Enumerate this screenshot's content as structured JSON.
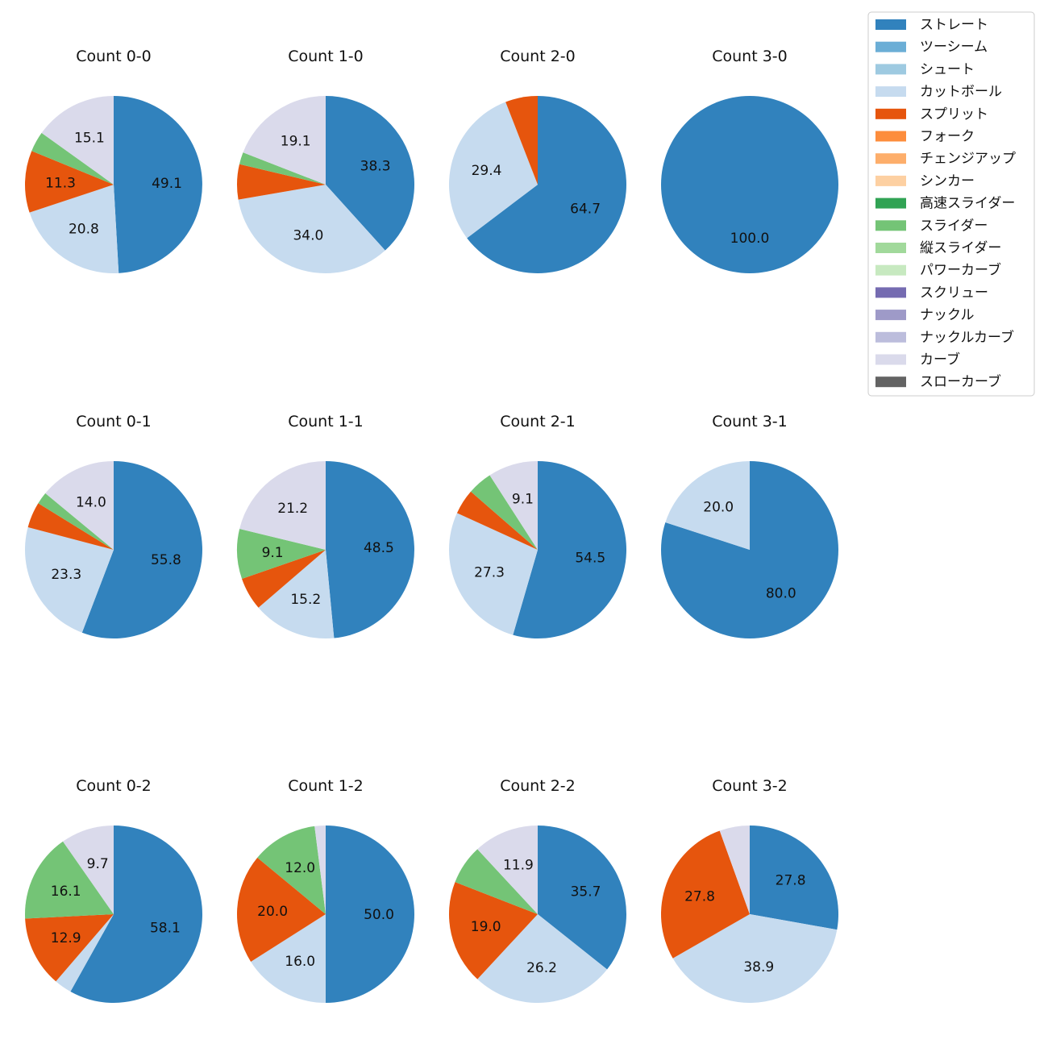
{
  "chart_data": {
    "type": "pie",
    "unit": "percent",
    "legend": {
      "placement": "top-right",
      "entries": [
        {
          "name": "ストレート",
          "color": "#3182bd"
        },
        {
          "name": "ツーシーム",
          "color": "#6baed6"
        },
        {
          "name": "シュート",
          "color": "#9ecae1"
        },
        {
          "name": "カットボール",
          "color": "#c6dbef"
        },
        {
          "name": "スプリット",
          "color": "#e6550d"
        },
        {
          "name": "フォーク",
          "color": "#fd8d3c"
        },
        {
          "name": "チェンジアップ",
          "color": "#fdae6b"
        },
        {
          "name": "シンカー",
          "color": "#fdd0a2"
        },
        {
          "name": "高速スライダー",
          "color": "#31a354"
        },
        {
          "name": "スライダー",
          "color": "#74c476"
        },
        {
          "name": "縦スライダー",
          "color": "#a1d99b"
        },
        {
          "name": "パワーカーブ",
          "color": "#c7e9c0"
        },
        {
          "name": "スクリュー",
          "color": "#756bb1"
        },
        {
          "name": "ナックル",
          "color": "#9e9ac8"
        },
        {
          "name": "ナックルカーブ",
          "color": "#bcbddc"
        },
        {
          "name": "カーブ",
          "color": "#dadaeb"
        },
        {
          "name": "スローカーブ",
          "color": "#636363"
        }
      ]
    },
    "charts": [
      {
        "title": "Count 0-0",
        "slices": [
          {
            "pitch": "ストレート",
            "value": 49.1,
            "label": "49.1"
          },
          {
            "pitch": "カットボール",
            "value": 20.8,
            "label": "20.8"
          },
          {
            "pitch": "スプリット",
            "value": 11.3,
            "label": "11.3"
          },
          {
            "pitch": "スライダー",
            "value": 3.7,
            "label": ""
          },
          {
            "pitch": "カーブ",
            "value": 15.1,
            "label": "15.1"
          }
        ]
      },
      {
        "title": "Count 1-0",
        "slices": [
          {
            "pitch": "ストレート",
            "value": 38.3,
            "label": "38.3"
          },
          {
            "pitch": "カットボール",
            "value": 34.0,
            "label": "34.0"
          },
          {
            "pitch": "スプリット",
            "value": 6.4,
            "label": ""
          },
          {
            "pitch": "スライダー",
            "value": 2.2,
            "label": ""
          },
          {
            "pitch": "カーブ",
            "value": 19.1,
            "label": "19.1"
          }
        ]
      },
      {
        "title": "Count 2-0",
        "slices": [
          {
            "pitch": "ストレート",
            "value": 64.7,
            "label": "64.7"
          },
          {
            "pitch": "カットボール",
            "value": 29.4,
            "label": "29.4"
          },
          {
            "pitch": "スプリット",
            "value": 5.9,
            "label": ""
          }
        ]
      },
      {
        "title": "Count 3-0",
        "slices": [
          {
            "pitch": "ストレート",
            "value": 100.0,
            "label": "100.0"
          }
        ]
      },
      {
        "title": "Count 0-1",
        "slices": [
          {
            "pitch": "ストレート",
            "value": 55.8,
            "label": "55.8"
          },
          {
            "pitch": "カットボール",
            "value": 23.3,
            "label": "23.3"
          },
          {
            "pitch": "スプリット",
            "value": 4.7,
            "label": ""
          },
          {
            "pitch": "スライダー",
            "value": 2.2,
            "label": ""
          },
          {
            "pitch": "カーブ",
            "value": 14.0,
            "label": "14.0"
          }
        ]
      },
      {
        "title": "Count 1-1",
        "slices": [
          {
            "pitch": "ストレート",
            "value": 48.5,
            "label": "48.5"
          },
          {
            "pitch": "カットボール",
            "value": 15.2,
            "label": "15.2"
          },
          {
            "pitch": "スプリット",
            "value": 6.0,
            "label": ""
          },
          {
            "pitch": "スライダー",
            "value": 9.1,
            "label": "9.1"
          },
          {
            "pitch": "カーブ",
            "value": 21.2,
            "label": "21.2"
          }
        ]
      },
      {
        "title": "Count 2-1",
        "slices": [
          {
            "pitch": "ストレート",
            "value": 54.5,
            "label": "54.5"
          },
          {
            "pitch": "カットボール",
            "value": 27.3,
            "label": "27.3"
          },
          {
            "pitch": "スプリット",
            "value": 4.6,
            "label": ""
          },
          {
            "pitch": "スライダー",
            "value": 4.5,
            "label": ""
          },
          {
            "pitch": "カーブ",
            "value": 9.1,
            "label": "9.1"
          }
        ]
      },
      {
        "title": "Count 3-1",
        "slices": [
          {
            "pitch": "ストレート",
            "value": 80.0,
            "label": "80.0"
          },
          {
            "pitch": "カットボール",
            "value": 20.0,
            "label": "20.0"
          }
        ]
      },
      {
        "title": "Count 0-2",
        "slices": [
          {
            "pitch": "ストレート",
            "value": 58.1,
            "label": "58.1"
          },
          {
            "pitch": "カットボール",
            "value": 3.2,
            "label": ""
          },
          {
            "pitch": "スプリット",
            "value": 12.9,
            "label": "12.9"
          },
          {
            "pitch": "スライダー",
            "value": 16.1,
            "label": "16.1"
          },
          {
            "pitch": "カーブ",
            "value": 9.7,
            "label": "9.7"
          }
        ]
      },
      {
        "title": "Count 1-2",
        "slices": [
          {
            "pitch": "ストレート",
            "value": 50.0,
            "label": "50.0"
          },
          {
            "pitch": "カットボール",
            "value": 16.0,
            "label": "16.0"
          },
          {
            "pitch": "スプリット",
            "value": 20.0,
            "label": "20.0"
          },
          {
            "pitch": "スライダー",
            "value": 12.0,
            "label": "12.0"
          },
          {
            "pitch": "カーブ",
            "value": 2.0,
            "label": ""
          }
        ]
      },
      {
        "title": "Count 2-2",
        "slices": [
          {
            "pitch": "ストレート",
            "value": 35.7,
            "label": "35.7"
          },
          {
            "pitch": "カットボール",
            "value": 26.2,
            "label": "26.2"
          },
          {
            "pitch": "スプリット",
            "value": 19.0,
            "label": "19.0"
          },
          {
            "pitch": "スライダー",
            "value": 7.2,
            "label": ""
          },
          {
            "pitch": "カーブ",
            "value": 11.9,
            "label": "11.9"
          }
        ]
      },
      {
        "title": "Count 3-2",
        "slices": [
          {
            "pitch": "ストレート",
            "value": 27.8,
            "label": "27.8"
          },
          {
            "pitch": "カットボール",
            "value": 38.9,
            "label": "38.9"
          },
          {
            "pitch": "スプリット",
            "value": 27.8,
            "label": "27.8"
          },
          {
            "pitch": "カーブ",
            "value": 5.5,
            "label": ""
          }
        ]
      }
    ]
  }
}
